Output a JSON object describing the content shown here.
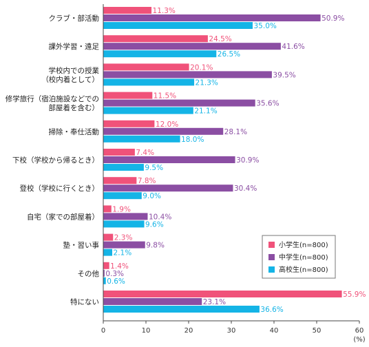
{
  "chart_data": {
    "type": "bar",
    "orientation": "horizontal",
    "categories": [
      [
        "クラブ・部活動"
      ],
      [
        "課外学習・遠足"
      ],
      [
        "学校内での授業",
        "（校内着として）"
      ],
      [
        "修学旅行（宿泊施設などでの",
        "部屋着を含む）"
      ],
      [
        "掃除・奉仕活動"
      ],
      [
        "下校（学校から帰るとき）"
      ],
      [
        "登校（学校に行くとき）"
      ],
      [
        "自宅（家での部屋着）"
      ],
      [
        "塾・習い事"
      ],
      [
        "その他"
      ],
      [
        "特にない"
      ]
    ],
    "series": [
      {
        "name": "小学生(n=800)",
        "color": "#f0527a",
        "values": [
          11.3,
          24.5,
          20.1,
          11.5,
          12.0,
          7.4,
          7.8,
          1.9,
          2.3,
          1.4,
          55.9
        ]
      },
      {
        "name": "中学生(n=800)",
        "color": "#8b4ea3",
        "values": [
          50.9,
          41.6,
          39.5,
          35.6,
          28.1,
          30.9,
          30.4,
          10.4,
          9.8,
          0.3,
          23.1
        ]
      },
      {
        "name": "高校生(n=800)",
        "color": "#14b4e6",
        "values": [
          35.0,
          26.5,
          21.3,
          21.1,
          18.0,
          9.5,
          9.0,
          9.6,
          2.1,
          0.6,
          36.6
        ]
      }
    ],
    "x_ticks": [
      0,
      10,
      20,
      30,
      40,
      50,
      60
    ],
    "xlim": [
      0,
      60
    ],
    "unit_label": "(%)",
    "legend_position": "right-middle",
    "grid": false
  }
}
